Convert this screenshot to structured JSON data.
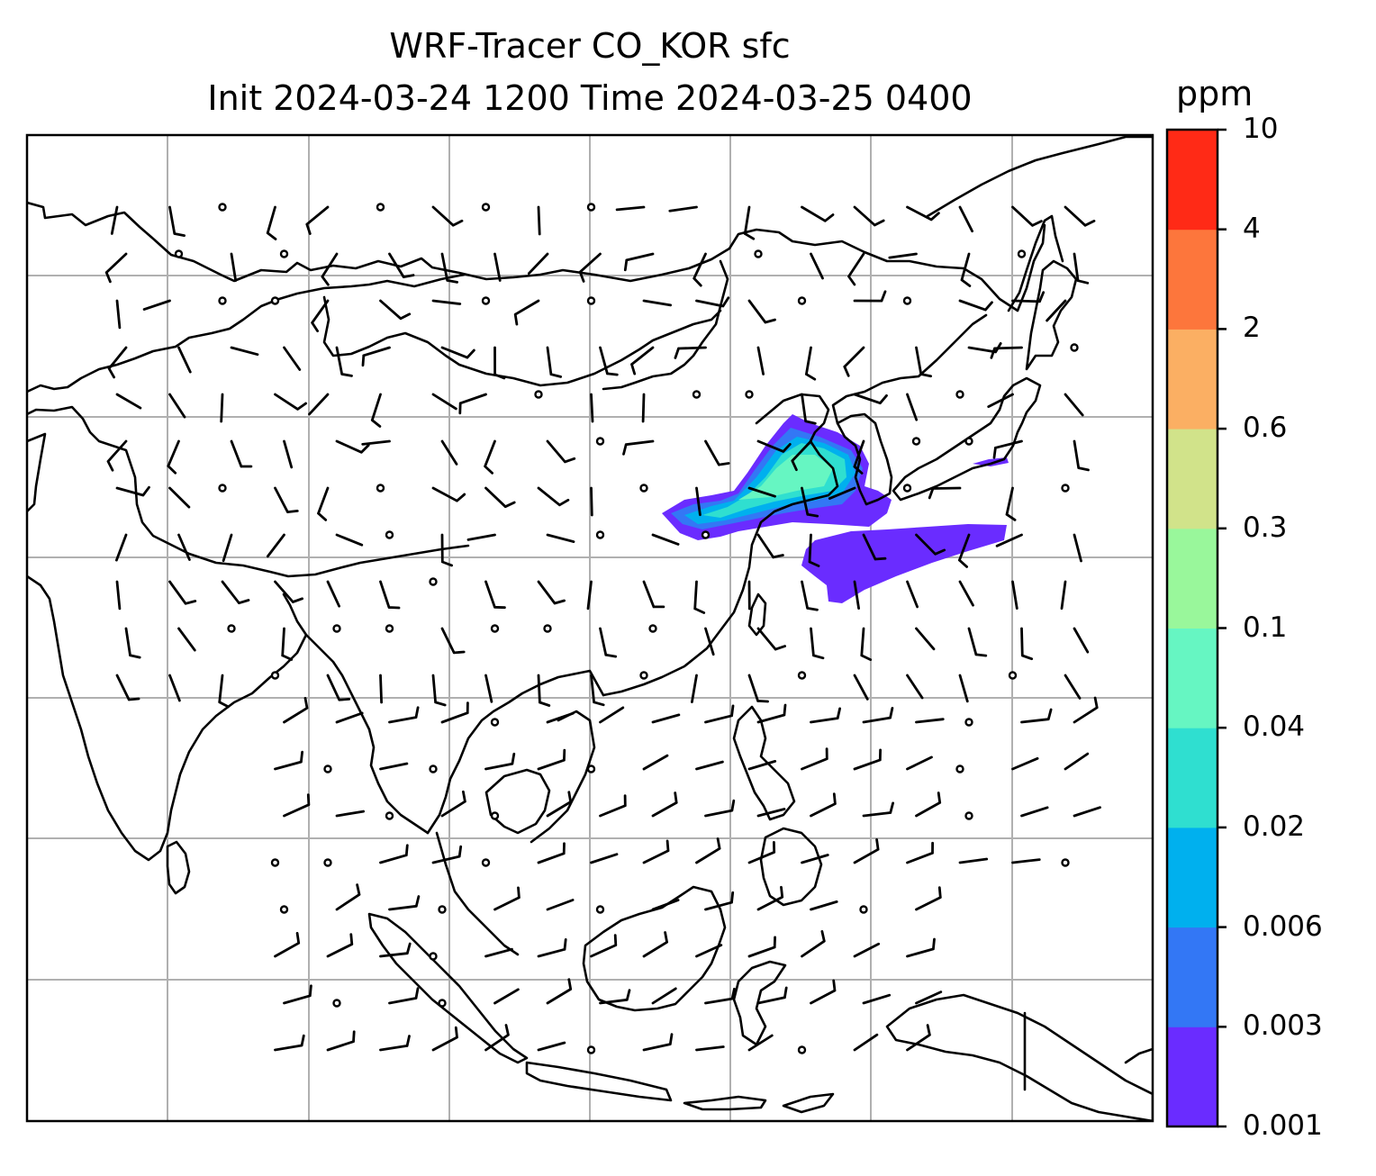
{
  "title_line1": "WRF-Tracer CO_KOR sfc",
  "title_line2": "Init 2024-03-24 1200 Time 2024-03-25 0400",
  "colorbar": {
    "unit": "ppm",
    "levels": [
      "0.001",
      "0.003",
      "0.006",
      "0.02",
      "0.04",
      "0.1",
      "0.3",
      "0.6",
      "2",
      "4",
      "10"
    ],
    "colors": [
      "#6a2cff",
      "#3377f5",
      "#00b0ee",
      "#2fdfd0",
      "#66f6c2",
      "#99f79b",
      "#d1e38a",
      "#fbaf63",
      "#fd763c",
      "#ff2a16"
    ]
  },
  "map": {
    "projection": "lat-lon",
    "gridlines": true,
    "gridline_color": "#b0b0b0",
    "coastline_color": "#000000",
    "wind_barbs": true,
    "tracer_plume": "Korea emissions plume over Yellow Sea and toward Japan",
    "plume_colors": [
      "#6a2cff",
      "#3377f5",
      "#00b0ee",
      "#2fdfd0",
      "#66f6c2"
    ]
  }
}
